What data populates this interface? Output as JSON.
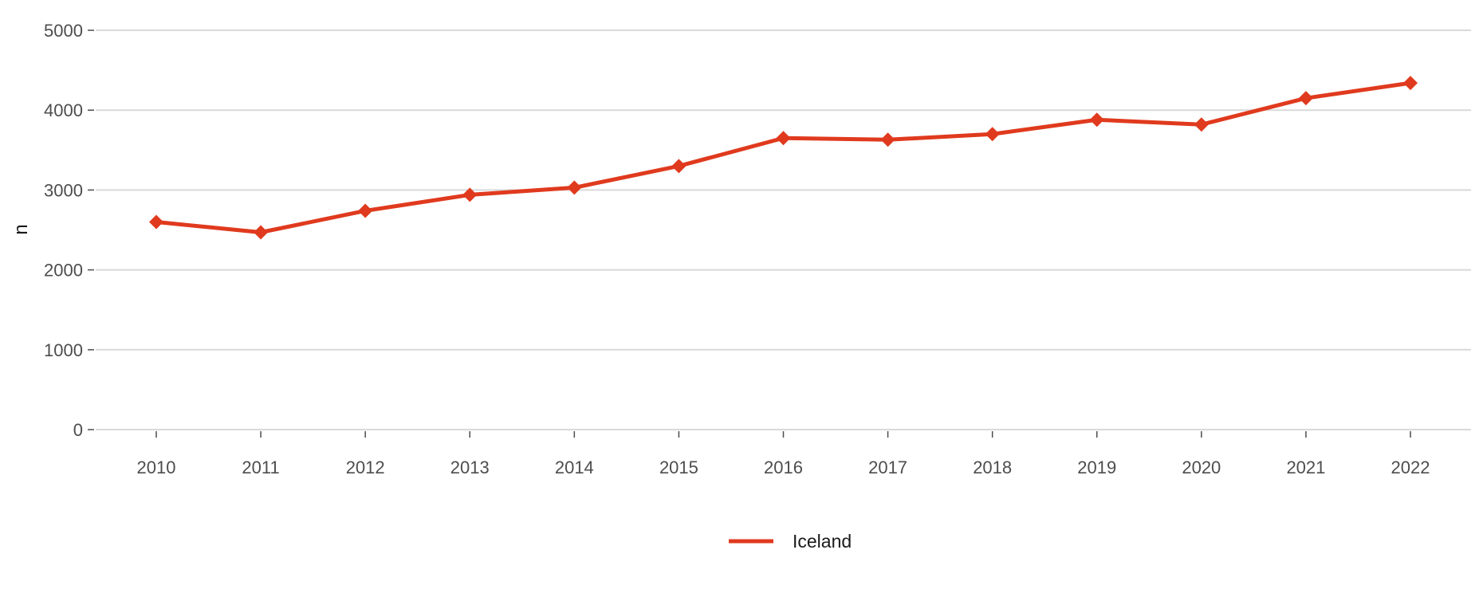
{
  "chart_data": {
    "type": "line",
    "x": [
      2010,
      2011,
      2012,
      2013,
      2014,
      2015,
      2016,
      2017,
      2018,
      2019,
      2020,
      2021,
      2022
    ],
    "series": [
      {
        "name": "Iceland",
        "color": "#e03a1e",
        "marker": "diamond",
        "values": [
          2600,
          2470,
          2740,
          2940,
          3030,
          3300,
          3650,
          3630,
          3700,
          3880,
          3820,
          4150,
          4340
        ]
      }
    ],
    "xlabel": "",
    "ylabel": "n",
    "ylim": [
      0,
      5000
    ],
    "yticks": [
      "0",
      "1000",
      "2000",
      "3000",
      "4000",
      "5000"
    ],
    "xticks": [
      "2010",
      "2011",
      "2012",
      "2013",
      "2014",
      "2015",
      "2016",
      "2017",
      "2018",
      "2019",
      "2020",
      "2021",
      "2022"
    ],
    "grid": "horizontal",
    "legend_position": "bottom"
  }
}
